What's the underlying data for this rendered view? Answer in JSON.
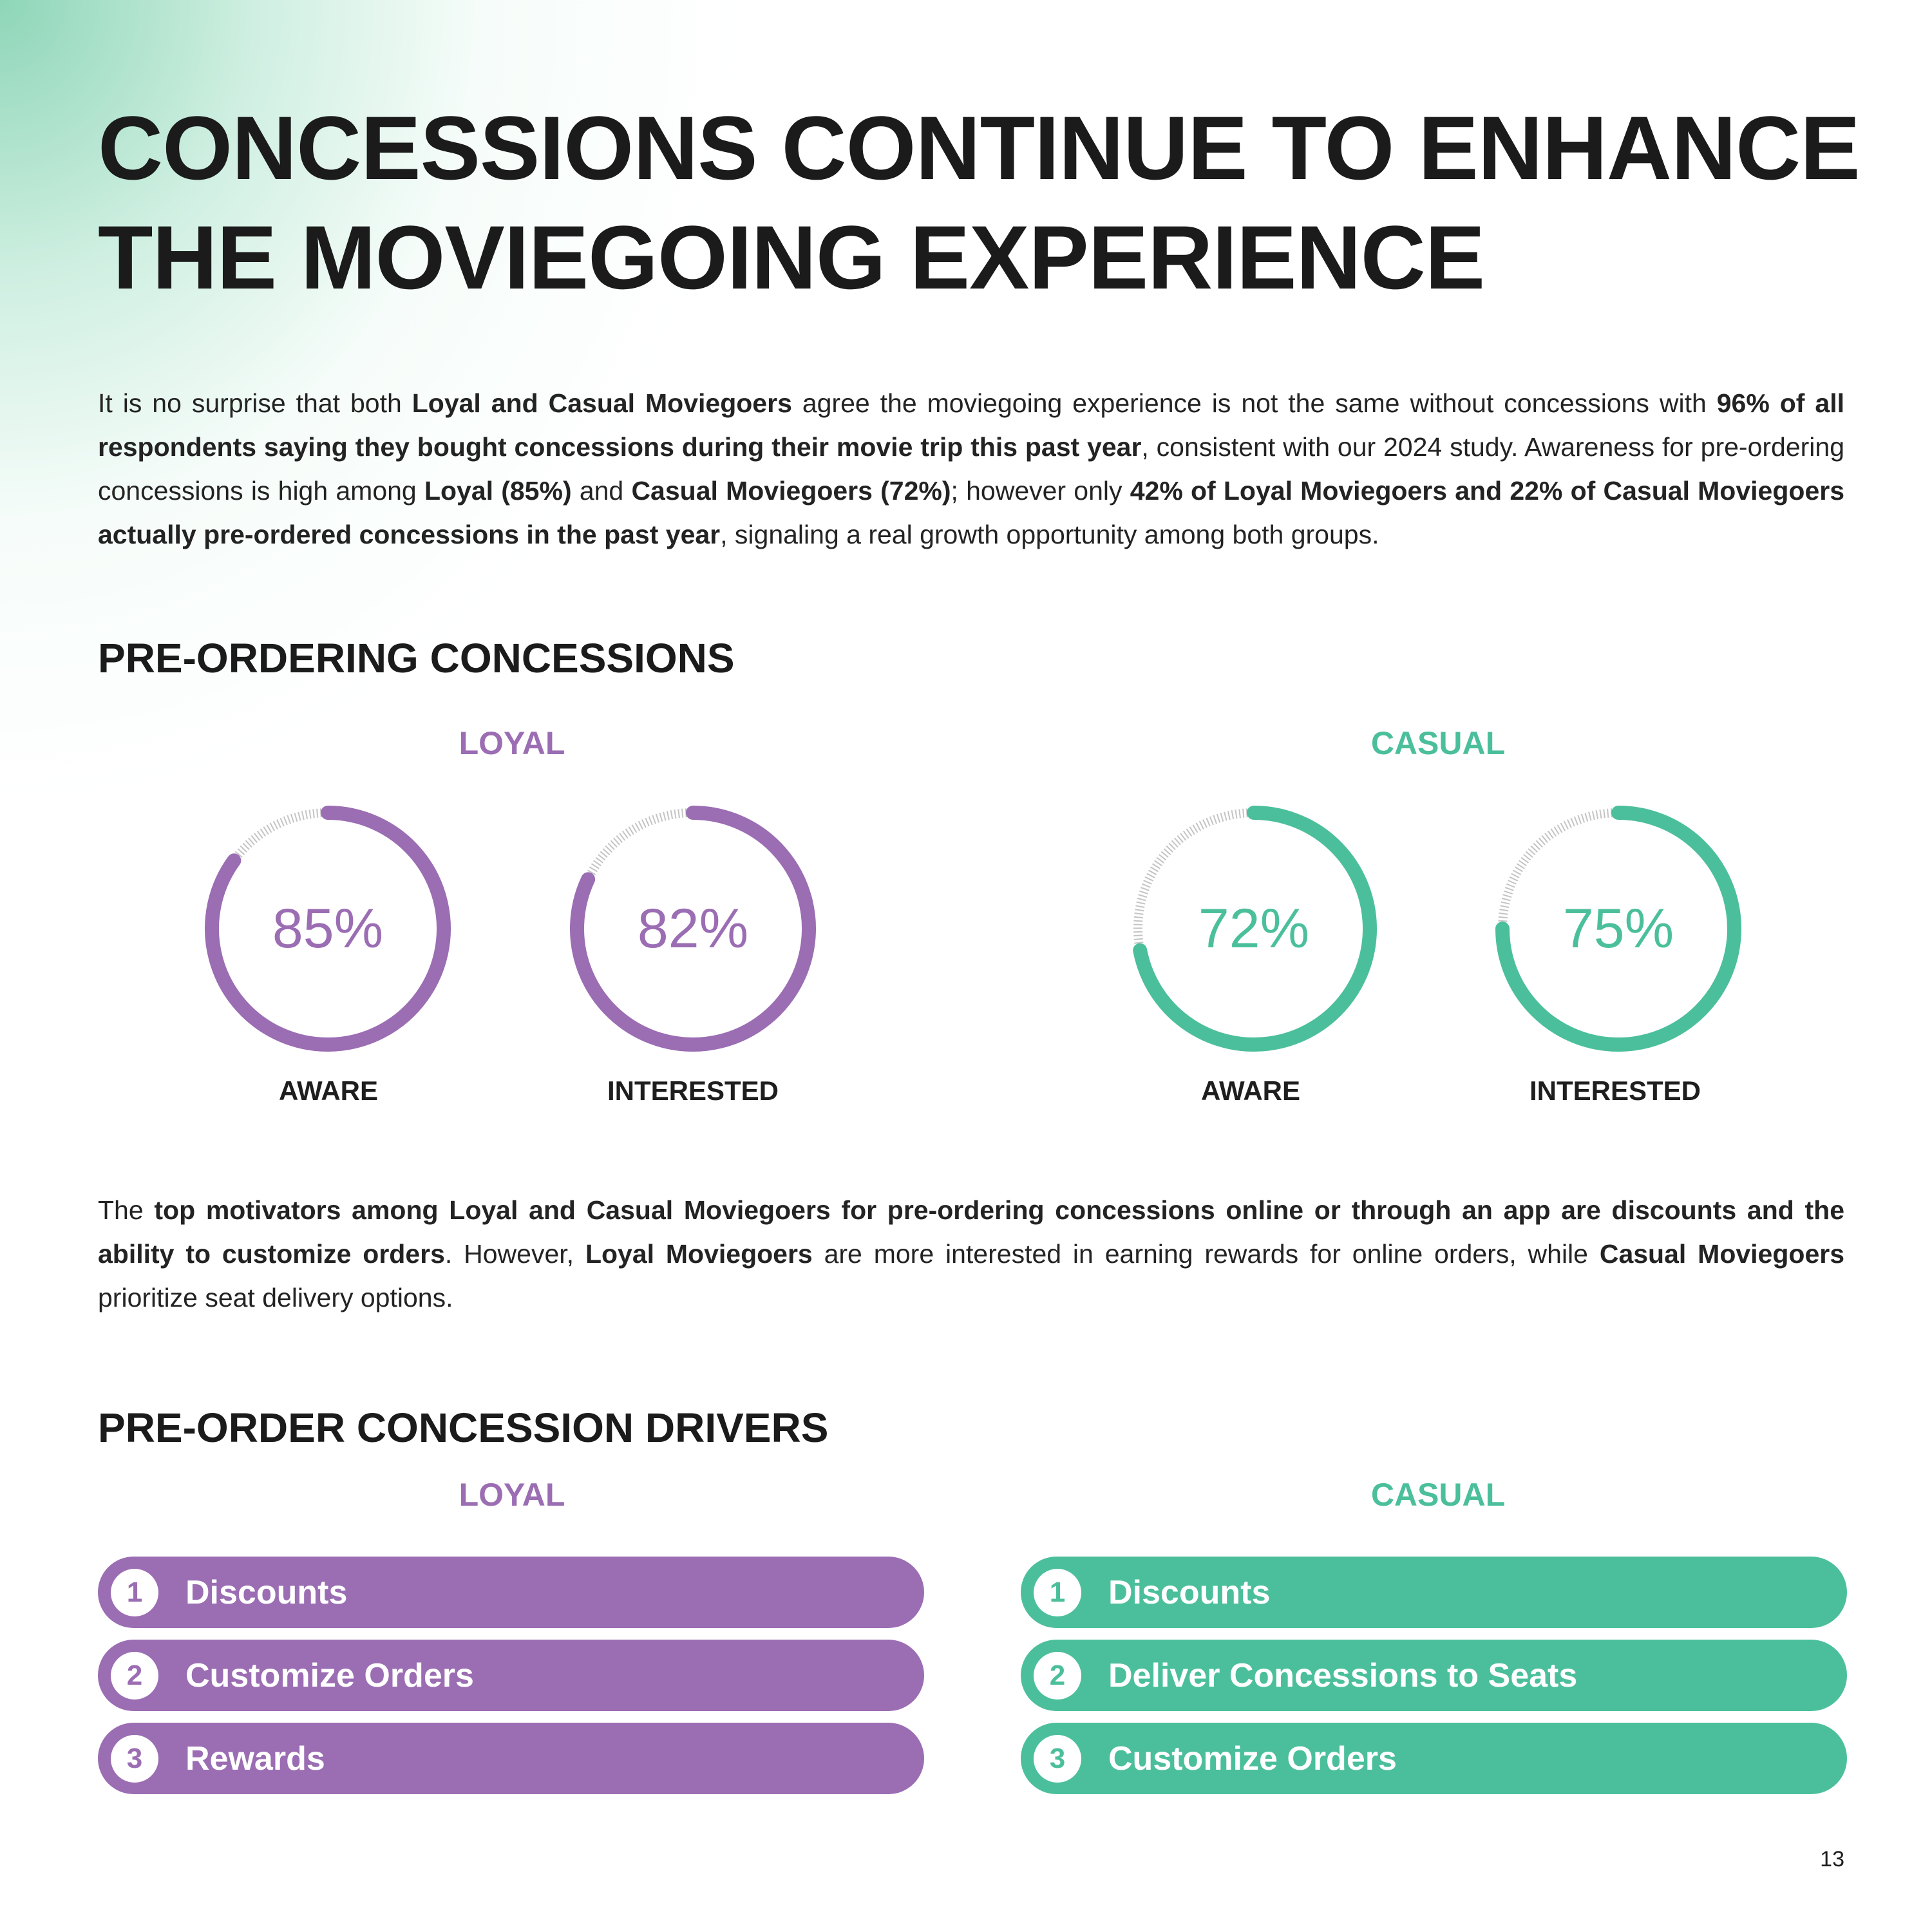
{
  "title": {
    "line1": "CONCESSIONS CONTINUE TO ENHANCE",
    "line2": "THE MOVIEGOING EXPERIENCE"
  },
  "intro_paragraph": [
    {
      "text": "It is no surprise that both ",
      "bold": false
    },
    {
      "text": "Loyal and Casual Moviegoers",
      "bold": true
    },
    {
      "text": " agree the moviegoing experience is not the same without concessions with ",
      "bold": false
    },
    {
      "text": "96% of all respondents saying they bought concessions during their movie trip this past year",
      "bold": true
    },
    {
      "text": ", consistent with our 2024 study. Awareness for pre-ordering concessions is high among ",
      "bold": false
    },
    {
      "text": "Loyal (85%)",
      "bold": true
    },
    {
      "text": " and ",
      "bold": false
    },
    {
      "text": "Casual Moviegoers (72%)",
      "bold": true
    },
    {
      "text": "; however only ",
      "bold": false
    },
    {
      "text": "42% of Loyal Moviegoers and 22% of Casual Moviegoers actually pre-ordered concessions in the past year",
      "bold": true
    },
    {
      "text": ", signaling a real growth opportunity among both groups.",
      "bold": false
    }
  ],
  "pre_ordering": {
    "heading": "PRE-ORDERING CONCESSIONS",
    "loyal_label": "LOYAL",
    "casual_label": "CASUAL",
    "gauges": [
      {
        "value": 85,
        "label": "85%",
        "caption": "AWARE",
        "color": "#9b6db3"
      },
      {
        "value": 82,
        "label": "82%",
        "caption": "INTERESTED",
        "color": "#9b6db3"
      },
      {
        "value": 72,
        "label": "72%",
        "caption": "AWARE",
        "color": "#4bbf9b"
      },
      {
        "value": 75,
        "label": "75%",
        "caption": "INTERESTED",
        "color": "#4bbf9b"
      }
    ]
  },
  "motivators_paragraph": [
    {
      "text": "The ",
      "bold": false
    },
    {
      "text": "top motivators among Loyal and Casual Moviegoers for pre-ordering concessions online or through an app are discounts and the ability to customize orders",
      "bold": true
    },
    {
      "text": ". However, ",
      "bold": false
    },
    {
      "text": "Loyal Moviegoers",
      "bold": true
    },
    {
      "text": " are more interested in earning rewards for online orders, while ",
      "bold": false
    },
    {
      "text": "Casual Moviegoers",
      "bold": true
    },
    {
      "text": " prioritize seat delivery options.",
      "bold": false
    }
  ],
  "drivers": {
    "heading": "PRE-ORDER CONCESSION DRIVERS",
    "loyal_label": "LOYAL",
    "casual_label": "CASUAL",
    "loyal": [
      {
        "rank": "1",
        "label": "Discounts"
      },
      {
        "rank": "2",
        "label": "Customize Orders"
      },
      {
        "rank": "3",
        "label": "Rewards"
      }
    ],
    "casual": [
      {
        "rank": "1",
        "label": "Discounts"
      },
      {
        "rank": "2",
        "label": "Deliver Concessions to Seats"
      },
      {
        "rank": "3",
        "label": "Customize Orders"
      }
    ]
  },
  "page_number": "13",
  "colors": {
    "loyal": "#9b6db3",
    "casual": "#4bbf9b",
    "track": "#c4c4c4"
  }
}
